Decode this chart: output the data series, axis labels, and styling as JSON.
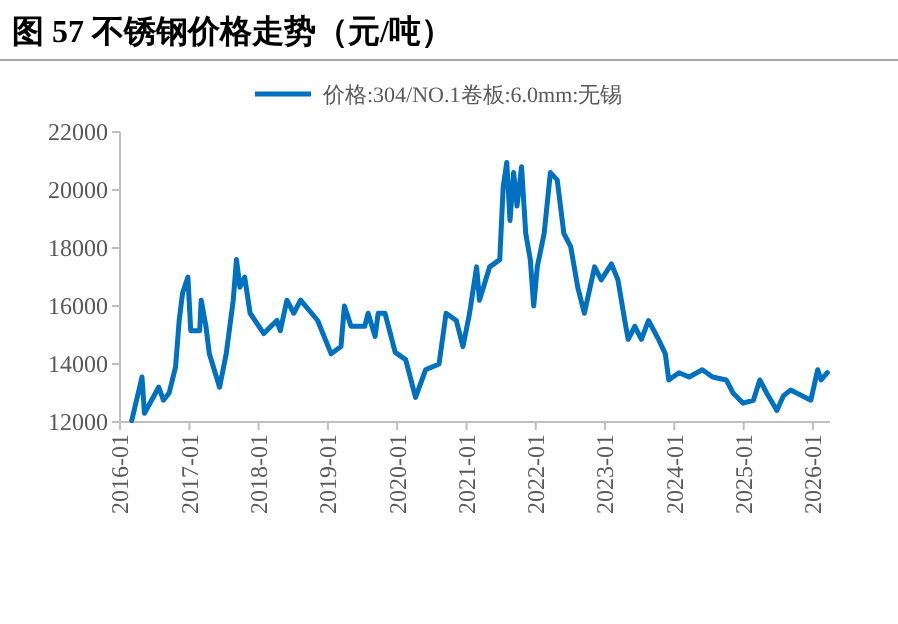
{
  "chart_data": {
    "type": "line",
    "title": "图 57 不锈钢价格走势（元/吨）",
    "legend": "top",
    "xlim": [
      "2016-01",
      "2026-04"
    ],
    "xticks": [
      {
        "value": "2016-01",
        "label": "2016-01"
      },
      {
        "value": "2017-01",
        "label": "2017-01"
      },
      {
        "value": "2018-01",
        "label": "2018-01"
      },
      {
        "value": "2019-01",
        "label": "2019-01"
      },
      {
        "value": "2020-01",
        "label": "2020-01"
      },
      {
        "value": "2021-01",
        "label": "2021-01"
      },
      {
        "value": "2022-01",
        "label": "2022-01"
      },
      {
        "value": "2023-01",
        "label": "2023-01"
      },
      {
        "value": "2024-01",
        "label": "2024-01"
      },
      {
        "value": "2025-01",
        "label": "2025-01"
      },
      {
        "value": "2026-01",
        "label": "2026-01"
      }
    ],
    "ylim": [
      12000,
      22000
    ],
    "yticks": [
      12000,
      14000,
      16000,
      18000,
      20000,
      22000
    ],
    "grid": false,
    "x": [
      "2016-03-03",
      "2016-04-26",
      "2016-05-09",
      "2016-07-23",
      "2016-08-17",
      "2016-09-16",
      "2016-10-20",
      "2016-11-08",
      "2016-11-26",
      "2016-12-24",
      "2017-01-08",
      "2017-02-24",
      "2017-03-04",
      "2017-03-29",
      "2017-04-16",
      "2017-06-09",
      "2017-07-14",
      "2017-08-20",
      "2017-09-06",
      "2017-09-24",
      "2017-10-19",
      "2017-11-17",
      "2018-01-28",
      "2018-04-07",
      "2018-04-25",
      "2018-05-30",
      "2018-07-05",
      "2018-08-10",
      "2018-11-08",
      "2019-01-18",
      "2019-03-11",
      "2019-03-29",
      "2019-05-03",
      "2019-07-14",
      "2019-08-01",
      "2019-09-07",
      "2019-09-23",
      "2019-10-29",
      "2019-12-22",
      "2020-02-15",
      "2020-04-07",
      "2020-05-30",
      "2020-08-09",
      "2020-09-15",
      "2020-11-08",
      "2020-12-13",
      "2021-01-17",
      "2021-02-23",
      "2021-03-10",
      "2021-05-03",
      "2021-06-25",
      "2021-07-13",
      "2021-08-01",
      "2021-08-18",
      "2021-09-06",
      "2021-09-24",
      "2021-10-18",
      "2021-11-09",
      "2021-12-03",
      "2021-12-21",
      "2022-01-09",
      "2022-02-14",
      "2022-03-19",
      "2022-04-24",
      "2022-05-29",
      "2022-07-04",
      "2022-08-10",
      "2022-09-14",
      "2022-11-07",
      "2022-12-12",
      "2023-02-04",
      "2023-03-10",
      "2023-04-15",
      "2023-05-03",
      "2023-06-07",
      "2023-07-12",
      "2023-08-18",
      "2023-10-10",
      "2023-11-15",
      "2023-12-03",
      "2024-01-26",
      "2024-03-19",
      "2024-05-28",
      "2024-07-21",
      "2024-10-01",
      "2024-11-06",
      "2024-12-29",
      "2025-02-21",
      "2025-03-27",
      "2025-05-02",
      "2025-06-25",
      "2025-07-29",
      "2025-09-05",
      "2025-12-21",
      "2026-01-26",
      "2026-02-13",
      "2026-03-18"
    ],
    "series": [
      {
        "name": "价格:304/NO.1卷板:6.0mm:无锡",
        "color": "#0070c0",
        "values": [
          12050,
          13550,
          12300,
          13200,
          12750,
          13000,
          13900,
          15500,
          16450,
          17000,
          15150,
          15150,
          16200,
          15300,
          14350,
          13200,
          14350,
          16200,
          17600,
          16650,
          17000,
          15750,
          15050,
          15500,
          15150,
          16200,
          15750,
          16200,
          15500,
          14350,
          14600,
          16000,
          15300,
          15300,
          15750,
          14950,
          15750,
          15750,
          14400,
          14150,
          12850,
          13800,
          14000,
          15750,
          15500,
          14600,
          15750,
          17350,
          16200,
          17350,
          17600,
          20100,
          20950,
          18950,
          20600,
          19450,
          20800,
          18500,
          17600,
          16000,
          17350,
          18500,
          20600,
          20350,
          18500,
          18050,
          16650,
          15750,
          17350,
          16900,
          17450,
          16900,
          15500,
          14850,
          15300,
          14850,
          15500,
          14850,
          14350,
          13450,
          13700,
          13550,
          13800,
          13550,
          13450,
          13000,
          12650,
          12750,
          13450,
          13000,
          12400,
          12900,
          13100,
          12750,
          13800,
          13450,
          13700
        ]
      }
    ]
  }
}
